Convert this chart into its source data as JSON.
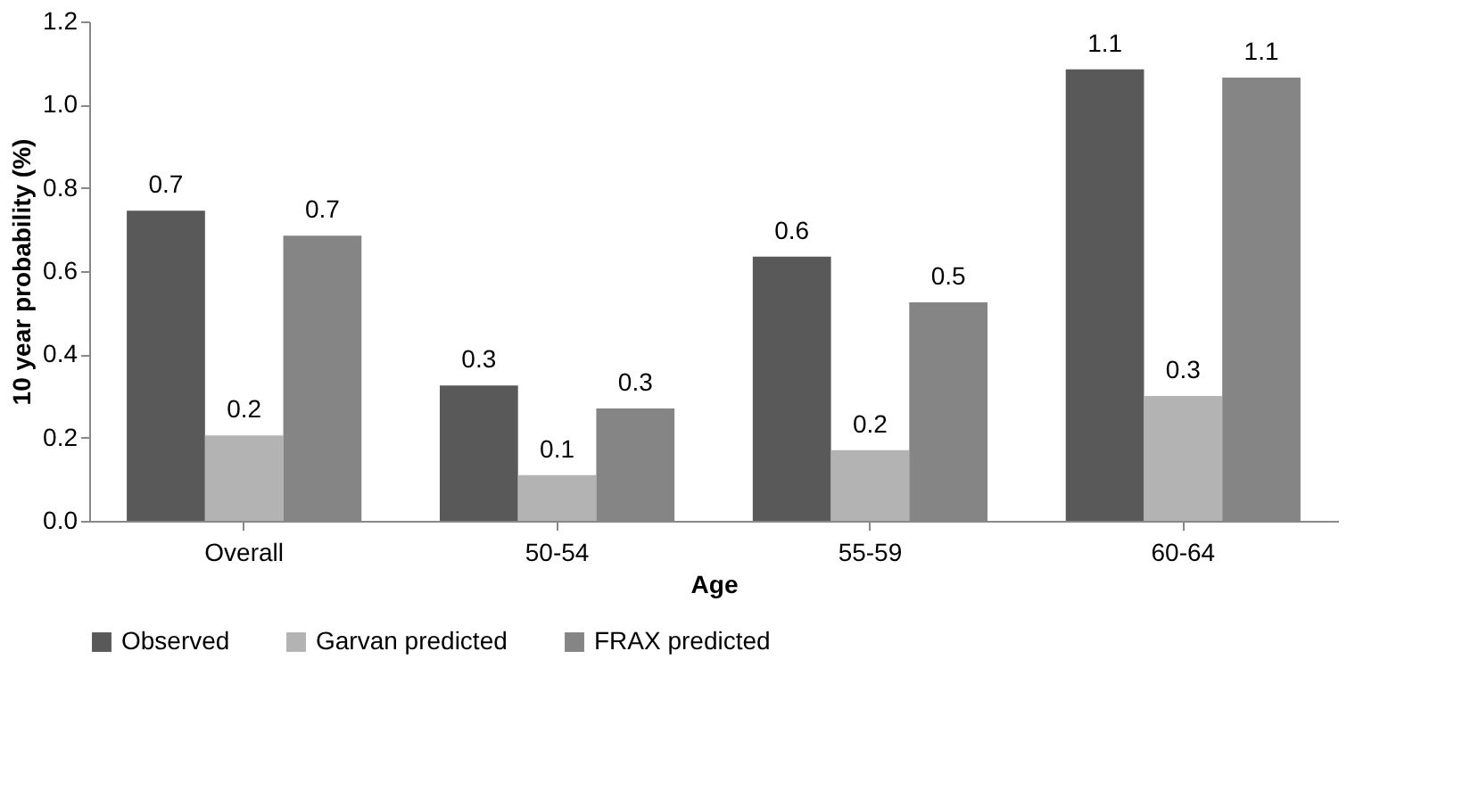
{
  "chart_data": {
    "type": "bar",
    "xlabel": "Age",
    "ylabel": "10 year probability (%)",
    "categories": [
      "Overall",
      "50-54",
      "55-59",
      "60-64"
    ],
    "series": [
      {
        "name": "Observed",
        "color": "#595959",
        "values": [
          0.745,
          0.325,
          0.635,
          1.085
        ],
        "value_labels": [
          "0.7",
          "0.3",
          "0.6",
          "1.1"
        ]
      },
      {
        "name": "Garvan predicted",
        "color": "#b3b3b3",
        "values": [
          0.205,
          0.11,
          0.17,
          0.3
        ],
        "value_labels": [
          "0.2",
          "0.1",
          "0.2",
          "0.3"
        ]
      },
      {
        "name": "FRAX predicted",
        "color": "#858585",
        "values": [
          0.685,
          0.27,
          0.525,
          1.065
        ],
        "value_labels": [
          "0.7",
          "0.3",
          "0.5",
          "1.1"
        ]
      }
    ],
    "ylim": [
      0,
      1.2
    ],
    "yticks": [
      {
        "value": 0,
        "label": "0.0"
      },
      {
        "value": 0.2,
        "label": "0.2"
      },
      {
        "value": 0.4,
        "label": "0.4"
      },
      {
        "value": 0.6,
        "label": "0.6"
      },
      {
        "value": 0.8,
        "label": "0.8"
      },
      {
        "value": 1.0,
        "label": "1.0"
      },
      {
        "value": 1.2,
        "label": "1.2"
      }
    ],
    "grid": false,
    "legend": "bottom"
  }
}
